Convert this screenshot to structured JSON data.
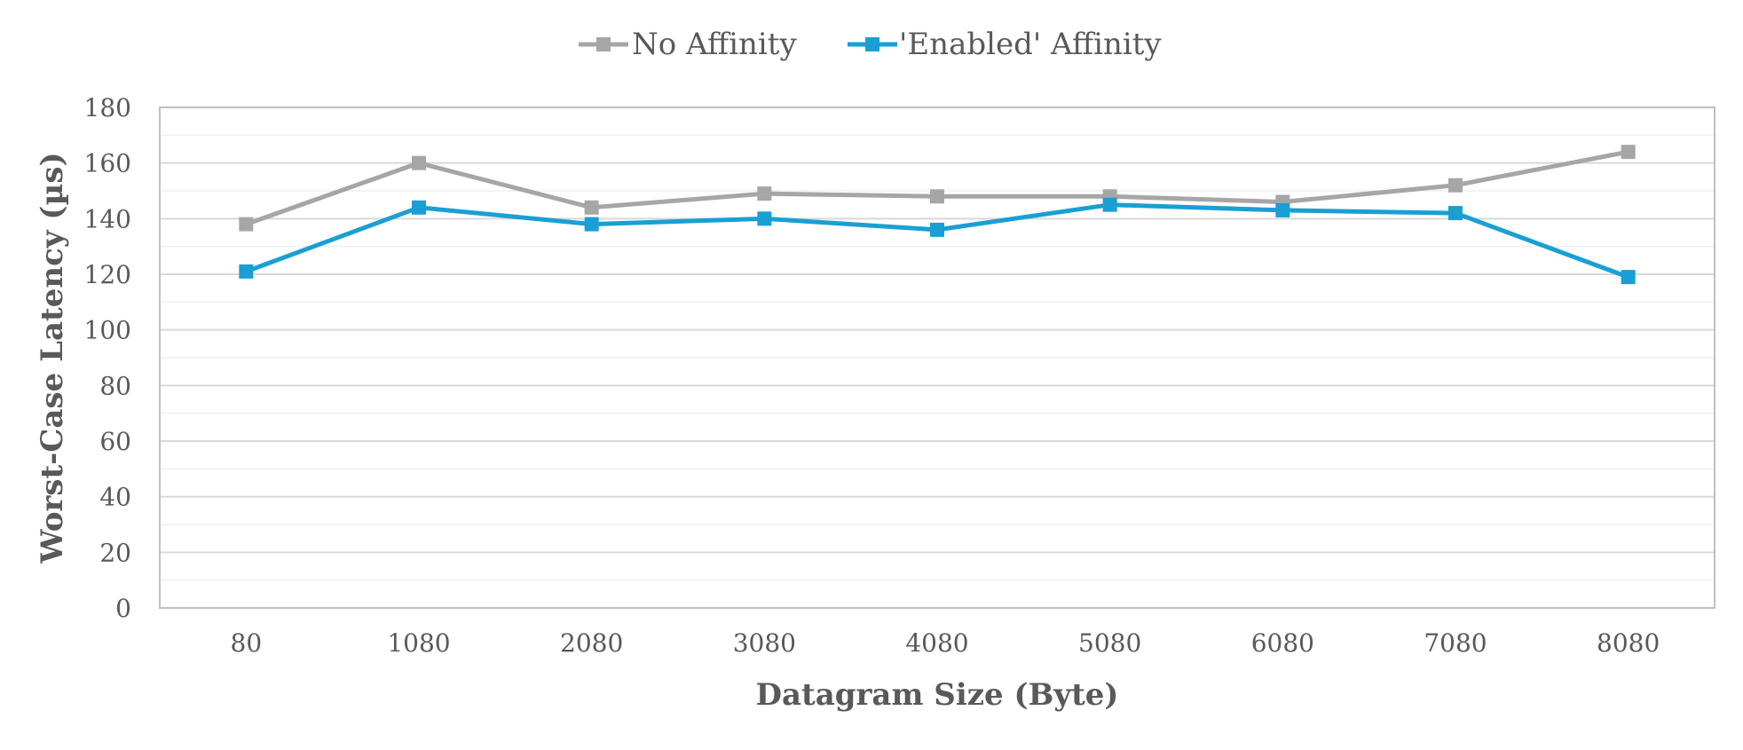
{
  "chart_data": {
    "type": "line",
    "xlabel": "Datagram Size (Byte)",
    "ylabel": "Worst-Case Latency (µs)",
    "categories": [
      "80",
      "1080",
      "2080",
      "3080",
      "4080",
      "5080",
      "6080",
      "7080",
      "8080"
    ],
    "ylim": [
      0,
      180
    ],
    "yticks": [
      0,
      20,
      40,
      60,
      80,
      100,
      120,
      140,
      160,
      180
    ],
    "grid": true,
    "legend_position": "top-center",
    "series": [
      {
        "name": "No Affinity",
        "color": "#a6a6a6",
        "marker": "square",
        "values": [
          138,
          160,
          144,
          149,
          148,
          148,
          146,
          152,
          164
        ]
      },
      {
        "name": "'Enabled' Affinity",
        "color": "#1a9fd4",
        "marker": "square",
        "values": [
          121,
          144,
          138,
          140,
          136,
          145,
          143,
          142,
          119
        ]
      }
    ]
  }
}
